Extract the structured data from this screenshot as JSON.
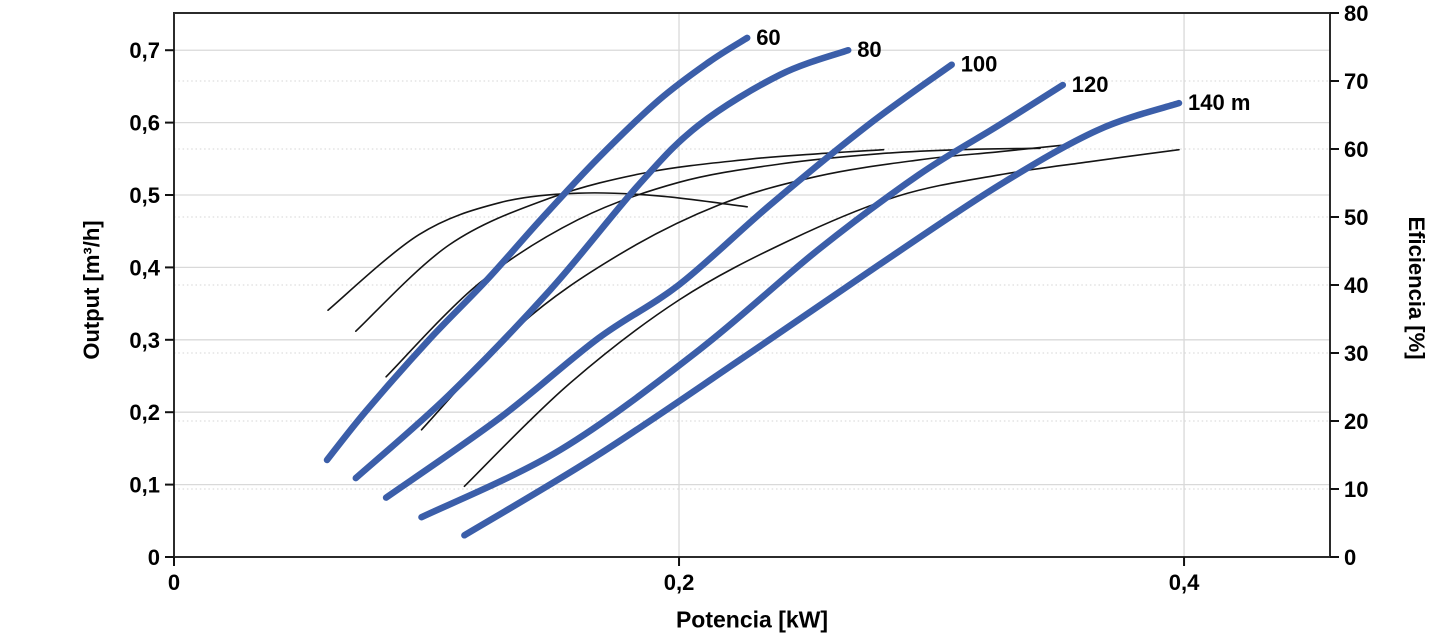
{
  "chart": {
    "x_axis_title": "Potencia [kW]",
    "y_left_title": "Output [m³/h]",
    "y_right_title": "Eficiencia [%]"
  },
  "chart_data": {
    "type": "line",
    "title": "",
    "xlabel": "Potencia [kW]",
    "ylabel_left": "Output [m³/h]",
    "ylabel_right": "Eficiencia [%]",
    "x_range": [
      0,
      0.4578
    ],
    "y_left_range": [
      0,
      0.7514
    ],
    "y_right_range": [
      0,
      80
    ],
    "grid": {
      "solid_color": "#d9d9d9",
      "dotted_color": "#d4d4d4"
    },
    "colors": {
      "head_curve": "#3b5ea9",
      "efficiency_curve": "#151515",
      "frame": "#2b2b2b"
    },
    "x_ticks": [
      {
        "v": 0,
        "label": "0"
      },
      {
        "v": 0.2,
        "label": "0,2"
      },
      {
        "v": 0.4,
        "label": "0,4"
      }
    ],
    "y_left_ticks": [
      {
        "v": 0,
        "label": "0"
      },
      {
        "v": 0.1,
        "label": "0,1"
      },
      {
        "v": 0.2,
        "label": "0,2"
      },
      {
        "v": 0.3,
        "label": "0,3"
      },
      {
        "v": 0.4,
        "label": "0,4"
      },
      {
        "v": 0.5,
        "label": "0,5"
      },
      {
        "v": 0.6,
        "label": "0,6"
      },
      {
        "v": 0.7,
        "label": "0,7"
      }
    ],
    "y_right_ticks": [
      {
        "v": 0,
        "label": "0"
      },
      {
        "v": 10,
        "label": "10"
      },
      {
        "v": 20,
        "label": "20"
      },
      {
        "v": 30,
        "label": "30"
      },
      {
        "v": 40,
        "label": "40"
      },
      {
        "v": 50,
        "label": "50"
      },
      {
        "v": 60,
        "label": "60"
      },
      {
        "v": 70,
        "label": "70"
      },
      {
        "v": 80,
        "label": "80"
      }
    ],
    "series": [
      {
        "name": "head-60m",
        "label": "60",
        "axis": "left",
        "role": "head",
        "width": 6.5,
        "points": [
          [
            0.0606,
            0.134
          ],
          [
            0.0764,
            0.203
          ],
          [
            0.101,
            0.3
          ],
          [
            0.124,
            0.383
          ],
          [
            0.145,
            0.465
          ],
          [
            0.168,
            0.551
          ],
          [
            0.192,
            0.631
          ],
          [
            0.212,
            0.684
          ],
          [
            0.227,
            0.717
          ]
        ]
      },
      {
        "name": "head-80m",
        "label": "80",
        "axis": "left",
        "role": "head",
        "width": 6.5,
        "points": [
          [
            0.072,
            0.109
          ],
          [
            0.109,
            0.224
          ],
          [
            0.149,
            0.369
          ],
          [
            0.184,
            0.514
          ],
          [
            0.208,
            0.597
          ],
          [
            0.24,
            0.666
          ],
          [
            0.267,
            0.7
          ]
        ]
      },
      {
        "name": "head-100m",
        "label": "100",
        "axis": "left",
        "role": "head",
        "width": 6.5,
        "points": [
          [
            0.084,
            0.082
          ],
          [
            0.129,
            0.192
          ],
          [
            0.168,
            0.302
          ],
          [
            0.2,
            0.376
          ],
          [
            0.236,
            0.486
          ],
          [
            0.275,
            0.597
          ],
          [
            0.308,
            0.68
          ]
        ]
      },
      {
        "name": "head-120m",
        "label": "120",
        "axis": "left",
        "role": "head",
        "width": 6.5,
        "points": [
          [
            0.098,
            0.055
          ],
          [
            0.153,
            0.148
          ],
          [
            0.208,
            0.286
          ],
          [
            0.255,
            0.424
          ],
          [
            0.295,
            0.528
          ],
          [
            0.327,
            0.597
          ],
          [
            0.352,
            0.652
          ]
        ]
      },
      {
        "name": "head-140m",
        "label": "140 m",
        "axis": "left",
        "role": "head",
        "width": 6.5,
        "points": [
          [
            0.115,
            0.03
          ],
          [
            0.168,
            0.141
          ],
          [
            0.224,
            0.272
          ],
          [
            0.279,
            0.403
          ],
          [
            0.327,
            0.514
          ],
          [
            0.366,
            0.59
          ],
          [
            0.398,
            0.627
          ]
        ]
      },
      {
        "name": "eficiencia-60m",
        "label": "",
        "axis": "right",
        "role": "efficiency",
        "width": 1.6,
        "points": [
          [
            0.061,
            36.3
          ],
          [
            0.097,
            47.4
          ],
          [
            0.129,
            52.1
          ],
          [
            0.16,
            53.5
          ],
          [
            0.192,
            53.1
          ],
          [
            0.227,
            51.5
          ]
        ]
      },
      {
        "name": "eficiencia-80m",
        "label": "",
        "axis": "right",
        "role": "efficiency",
        "width": 1.6,
        "points": [
          [
            0.072,
            33.2
          ],
          [
            0.109,
            45.9
          ],
          [
            0.149,
            52.8
          ],
          [
            0.188,
            56.6
          ],
          [
            0.228,
            58.5
          ],
          [
            0.255,
            59.3
          ],
          [
            0.281,
            59.9
          ]
        ]
      },
      {
        "name": "eficiencia-100m",
        "label": "",
        "axis": "right",
        "role": "efficiency",
        "width": 1.6,
        "points": [
          [
            0.084,
            26.5
          ],
          [
            0.121,
            40.3
          ],
          [
            0.16,
            49.6
          ],
          [
            0.2,
            55.1
          ],
          [
            0.24,
            57.8
          ],
          [
            0.279,
            59.3
          ],
          [
            0.311,
            59.9
          ],
          [
            0.343,
            60.1
          ]
        ]
      },
      {
        "name": "eficiencia-120m",
        "label": "",
        "axis": "right",
        "role": "efficiency",
        "width": 1.6,
        "points": [
          [
            0.098,
            18.7
          ],
          [
            0.137,
            34.1
          ],
          [
            0.176,
            44.4
          ],
          [
            0.216,
            51.8
          ],
          [
            0.255,
            56.0
          ],
          [
            0.295,
            58.4
          ],
          [
            0.327,
            59.6
          ],
          [
            0.353,
            60.6
          ]
        ]
      },
      {
        "name": "eficiencia-140m",
        "label": "",
        "axis": "right",
        "role": "efficiency",
        "width": 1.6,
        "points": [
          [
            0.115,
            10.4
          ],
          [
            0.156,
            25.3
          ],
          [
            0.2,
            37.8
          ],
          [
            0.244,
            46.6
          ],
          [
            0.287,
            53.1
          ],
          [
            0.327,
            56.2
          ],
          [
            0.362,
            58.1
          ],
          [
            0.398,
            59.9
          ]
        ]
      }
    ]
  }
}
